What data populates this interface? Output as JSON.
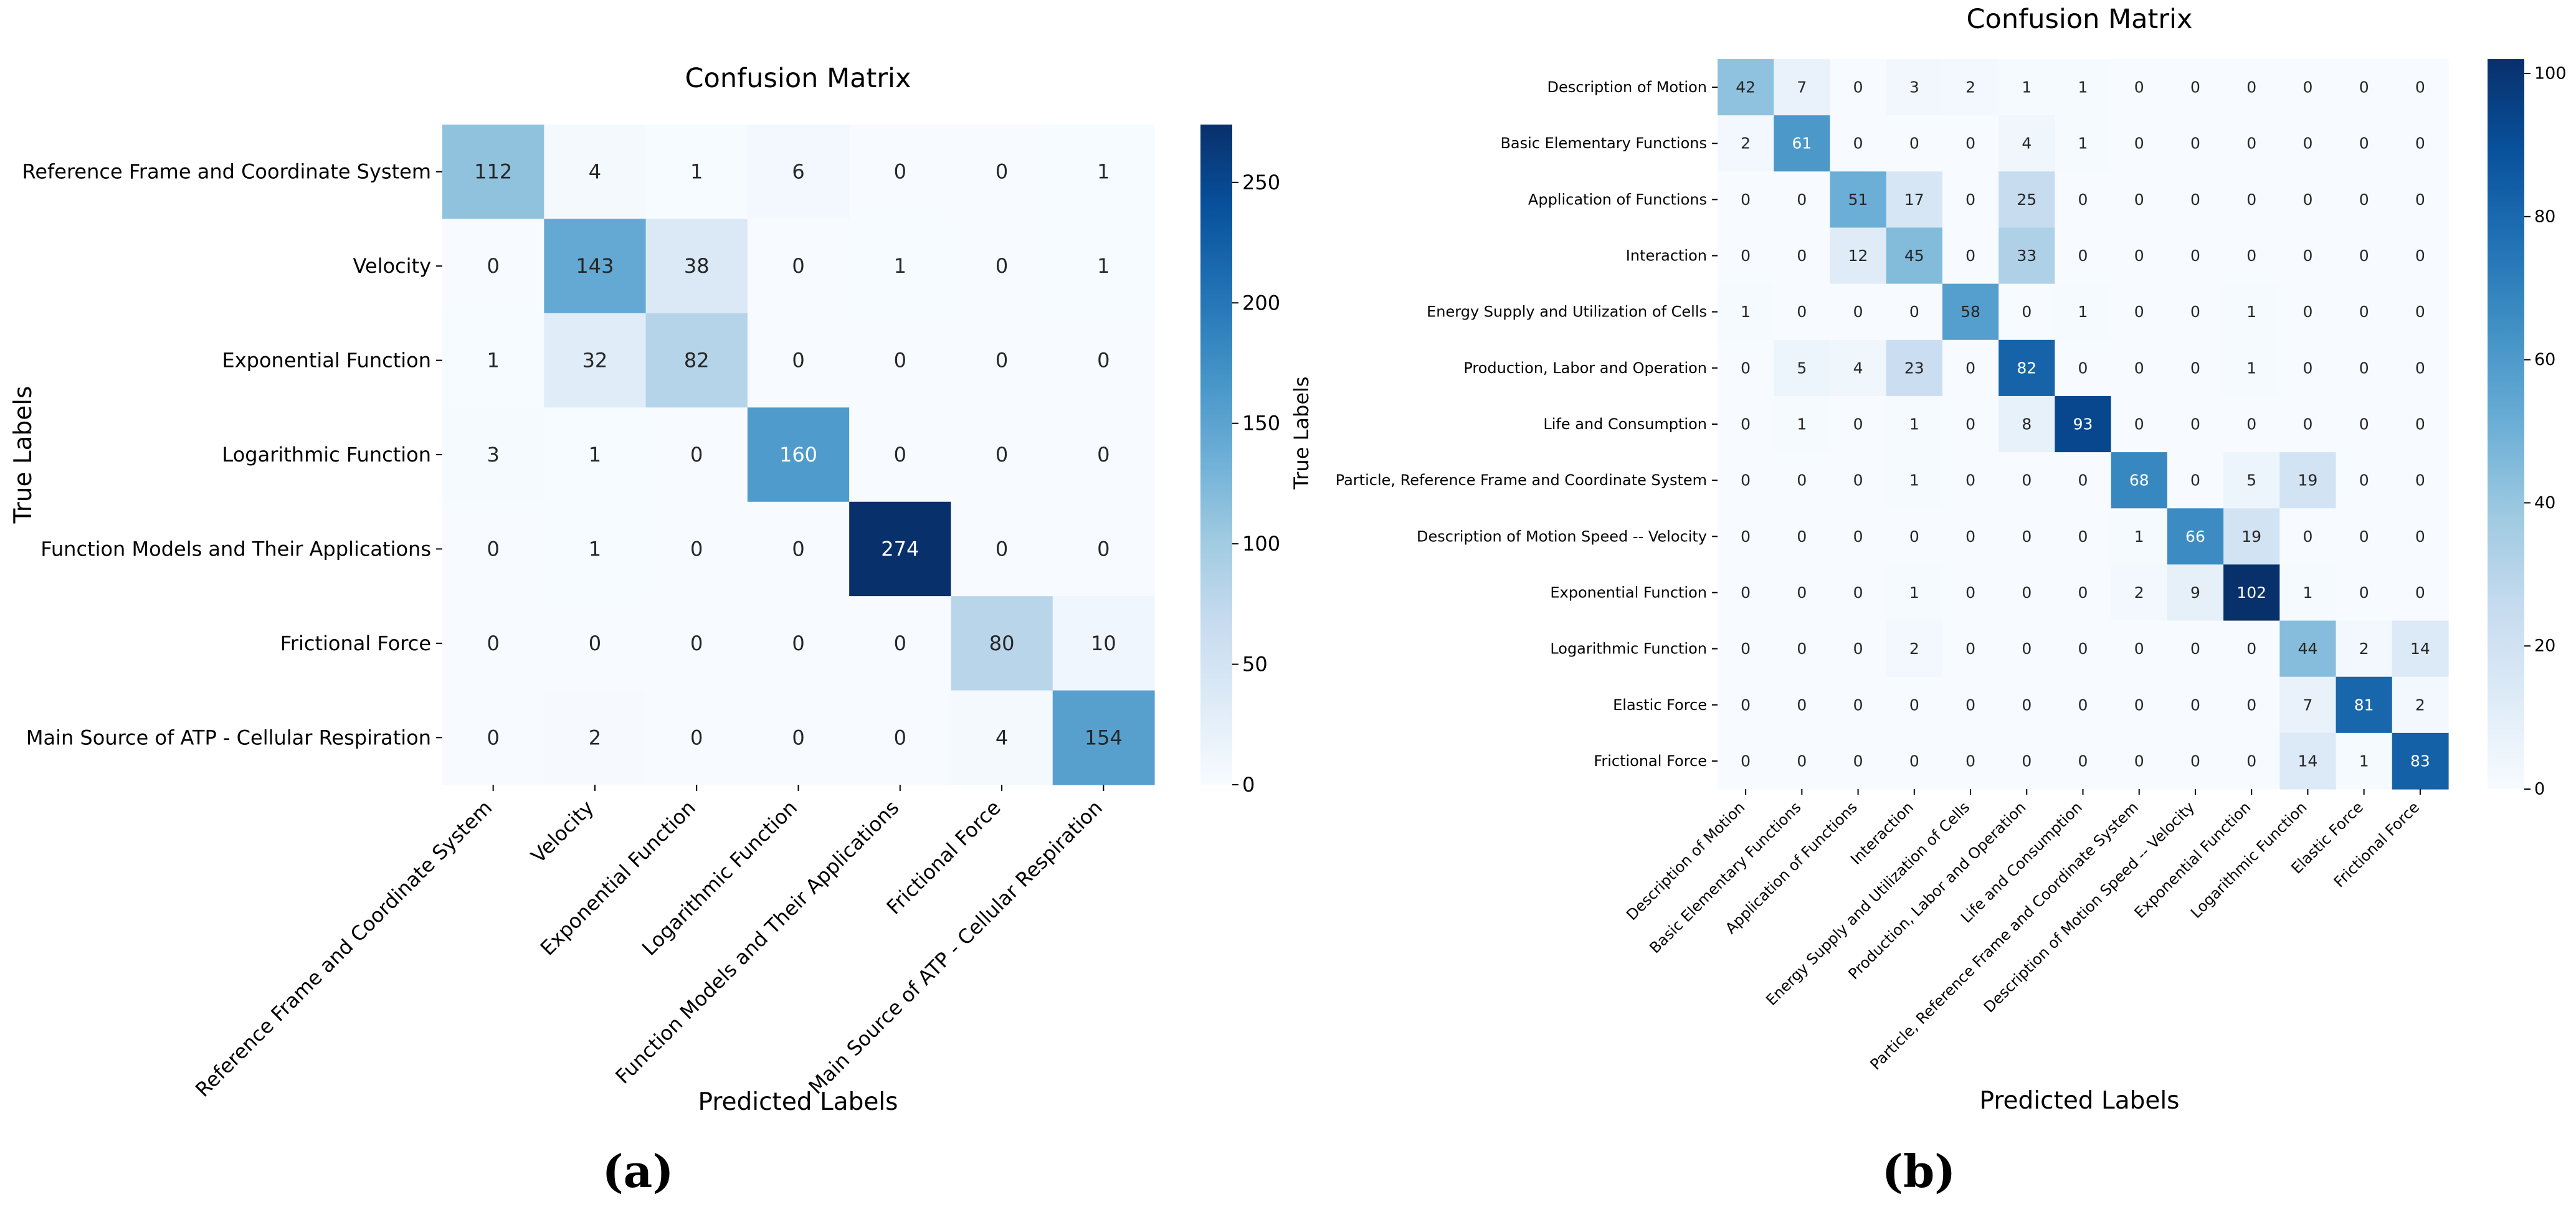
{
  "chart_data": [
    {
      "type": "heatmap",
      "panel": "(a)",
      "title": "Confusion Matrix",
      "xlabel": "Predicted Labels",
      "ylabel": "True Labels",
      "colorbar_label": "",
      "colormap": "Blues",
      "vmin": 0,
      "vmax": 274,
      "colorbar_ticks": [
        0,
        50,
        100,
        150,
        200,
        250
      ],
      "row_labels": [
        "Reference Frame and Coordinate System",
        "Velocity",
        "Exponential Function",
        "Logarithmic Function",
        "Function Models and Their Applications",
        "Frictional Force",
        "Main Source of ATP - Cellular Respiration"
      ],
      "col_labels": [
        "Reference Frame and Coordinate System",
        "Velocity",
        "Exponential Function",
        "Logarithmic Function",
        "Function Models and Their Applications",
        "Frictional Force",
        "Main Source of ATP - Cellular Respiration"
      ],
      "matrix": [
        [
          112,
          4,
          1,
          6,
          0,
          0,
          1
        ],
        [
          0,
          143,
          38,
          0,
          1,
          0,
          1
        ],
        [
          1,
          32,
          82,
          0,
          0,
          0,
          0
        ],
        [
          3,
          1,
          0,
          160,
          0,
          0,
          0
        ],
        [
          0,
          1,
          0,
          0,
          274,
          0,
          0
        ],
        [
          0,
          0,
          0,
          0,
          0,
          80,
          10
        ],
        [
          0,
          2,
          0,
          0,
          0,
          4,
          154
        ]
      ]
    },
    {
      "type": "heatmap",
      "panel": "(b)",
      "title": "Confusion Matrix",
      "xlabel": "Predicted Labels",
      "ylabel": "True Labels",
      "colormap": "Blues",
      "vmin": 0,
      "vmax": 102,
      "colorbar_ticks": [
        0,
        20,
        40,
        60,
        80,
        100
      ],
      "row_labels": [
        "Description of Motion",
        "Basic Elementary Functions",
        "Application of Functions",
        "Interaction",
        "Energy Supply and Utilization of Cells",
        "Production, Labor and Operation",
        "Life and Consumption",
        "Particle, Reference Frame and Coordinate System",
        "Description of Motion Speed -- Velocity",
        "Exponential Function",
        "Logarithmic Function",
        "Elastic Force",
        "Frictional Force"
      ],
      "col_labels": [
        "Description of Motion",
        "Basic Elementary Functions",
        "Application of Functions",
        "Interaction",
        "Energy Supply and Utilization of Cells",
        "Production, Labor and Operation",
        "Life and Consumption",
        "Particle, Reference Frame and Coordinate System",
        "Description of Motion Speed -- Velocity",
        "Exponential Function",
        "Logarithmic Function",
        "Elastic Force",
        "Frictional Force"
      ],
      "matrix": [
        [
          42,
          7,
          0,
          3,
          2,
          1,
          1,
          0,
          0,
          0,
          0,
          0,
          0
        ],
        [
          2,
          61,
          0,
          0,
          0,
          4,
          1,
          0,
          0,
          0,
          0,
          0,
          0
        ],
        [
          0,
          0,
          51,
          17,
          0,
          25,
          0,
          0,
          0,
          0,
          0,
          0,
          0
        ],
        [
          0,
          0,
          12,
          45,
          0,
          33,
          0,
          0,
          0,
          0,
          0,
          0,
          0
        ],
        [
          1,
          0,
          0,
          0,
          58,
          0,
          1,
          0,
          0,
          1,
          0,
          0,
          0
        ],
        [
          0,
          5,
          4,
          23,
          0,
          82,
          0,
          0,
          0,
          1,
          0,
          0,
          0
        ],
        [
          0,
          1,
          0,
          1,
          0,
          8,
          93,
          0,
          0,
          0,
          0,
          0,
          0
        ],
        [
          0,
          0,
          0,
          1,
          0,
          0,
          0,
          68,
          0,
          5,
          19,
          0,
          0
        ],
        [
          0,
          0,
          0,
          0,
          0,
          0,
          0,
          1,
          66,
          19,
          0,
          0,
          0
        ],
        [
          0,
          0,
          0,
          1,
          0,
          0,
          0,
          2,
          9,
          102,
          1,
          0,
          0
        ],
        [
          0,
          0,
          0,
          2,
          0,
          0,
          0,
          0,
          0,
          0,
          44,
          2,
          14
        ],
        [
          0,
          0,
          0,
          0,
          0,
          0,
          0,
          0,
          0,
          0,
          7,
          81,
          2
        ],
        [
          0,
          0,
          0,
          0,
          0,
          0,
          0,
          0,
          0,
          0,
          14,
          1,
          83
        ]
      ]
    }
  ]
}
